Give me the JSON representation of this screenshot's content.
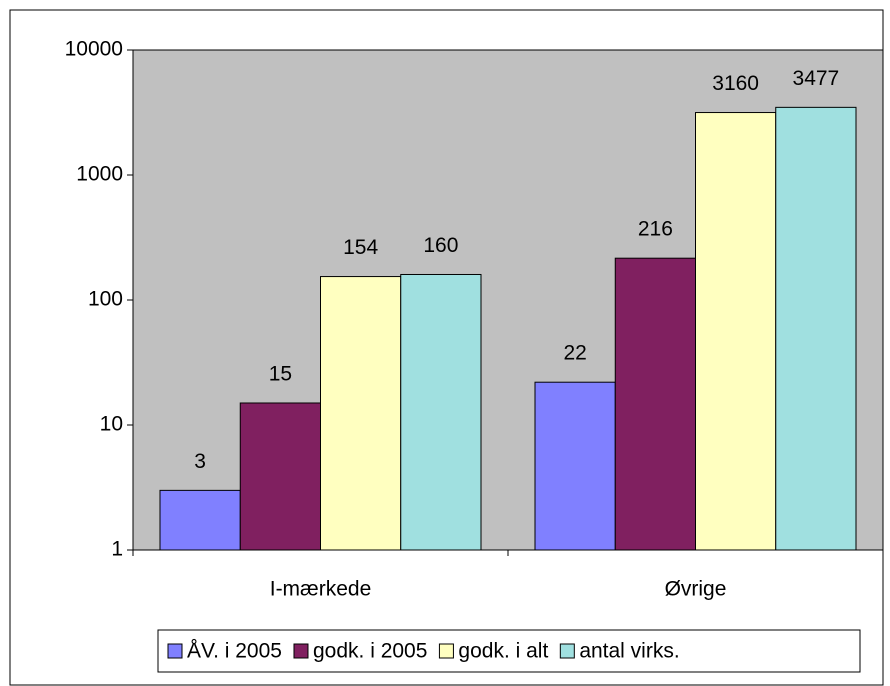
{
  "chart_data": {
    "type": "bar",
    "categories": [
      "I-mærkede",
      "Øvrige"
    ],
    "series": [
      {
        "name": "ÅV. i 2005",
        "color": "#8080ff",
        "values": [
          3,
          22
        ]
      },
      {
        "name": "godk. i 2005",
        "color": "#802060",
        "values": [
          15,
          216
        ]
      },
      {
        "name": "godk. i alt",
        "color": "#ffffc0",
        "values": [
          154,
          3160
        ]
      },
      {
        "name": "antal virks.",
        "color": "#a0e0e0",
        "values": [
          160,
          3477
        ]
      }
    ],
    "ylim": [
      1,
      10000
    ],
    "yticks": [
      1,
      10,
      100,
      1000,
      10000
    ],
    "log_scale": true,
    "legend": "bottom",
    "plot_background": "#c0c0c0"
  }
}
